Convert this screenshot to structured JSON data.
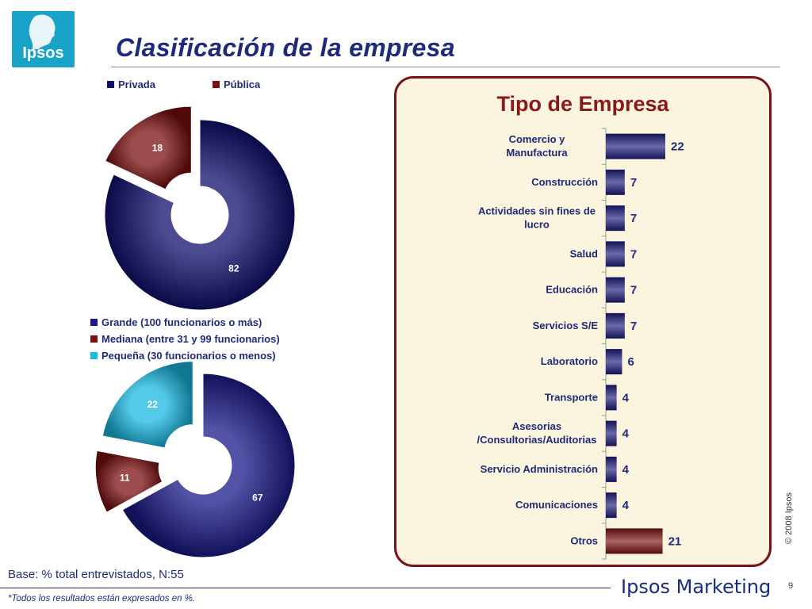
{
  "logo": {
    "text": "Ipsos"
  },
  "title": "Clasificación de la empresa",
  "pie1": {
    "legend": [
      {
        "label": "Privada",
        "color": "#10106e"
      },
      {
        "label": "Pública",
        "color": "#7a1010"
      }
    ]
  },
  "pie2": {
    "legend": [
      {
        "label": "Grande (100 funcionarios o más)",
        "color": "#1a1a8a"
      },
      {
        "label": "Mediana (entre 31 y 99 funcionarios)",
        "color": "#7a1010"
      },
      {
        "label": "Pequeña (30 funcionarios o menos)",
        "color": "#1ab8e0"
      }
    ]
  },
  "panel": {
    "title": "Tipo de Empresa"
  },
  "chart_data": [
    {
      "type": "pie",
      "title": "",
      "slices": [
        {
          "label": "Privada",
          "value": 82,
          "color": "#10106e",
          "exploded": false
        },
        {
          "label": "Pública",
          "value": 18,
          "color": "#7a1010",
          "exploded": true
        }
      ]
    },
    {
      "type": "pie",
      "title": "",
      "slices": [
        {
          "label": "Grande (100 funcionarios o más)",
          "value": 67,
          "color": "#1a1a8a",
          "exploded": false
        },
        {
          "label": "Mediana (entre 31 y 99 funcionarios)",
          "value": 11,
          "color": "#7a1010",
          "exploded": true
        },
        {
          "label": "Pequeña (30 funcionarios o menos)",
          "value": 22,
          "color": "#1ab8e0",
          "exploded": true
        }
      ]
    },
    {
      "type": "bar",
      "orientation": "horizontal",
      "title": "Tipo de Empresa",
      "categories": [
        [
          "Comercio y",
          "Manufactura"
        ],
        [
          "Construcción"
        ],
        [
          "Actividades sin fines de",
          "lucro"
        ],
        [
          "Salud"
        ],
        [
          "Educación"
        ],
        [
          "Servicios S/E"
        ],
        [
          "Laboratorio"
        ],
        [
          "Transporte"
        ],
        [
          "Asesorias",
          "/Consultorias/Auditorias"
        ],
        [
          "Servicio Administración"
        ],
        [
          "Comunicaciones"
        ],
        [
          "Otros"
        ]
      ],
      "values": [
        22,
        7,
        7,
        7,
        7,
        7,
        6,
        4,
        4,
        4,
        4,
        21
      ],
      "colors": [
        "#1a1a7a",
        "#1a1a7a",
        "#1a1a7a",
        "#1a1a7a",
        "#1a1a7a",
        "#1a1a7a",
        "#1a1a7a",
        "#1a1a7a",
        "#1a1a7a",
        "#1a1a7a",
        "#1a1a7a",
        "#7a1010"
      ],
      "xlim": [
        0,
        25
      ]
    }
  ],
  "footer": {
    "copyright": "© 2008 Ipsos",
    "base": "Base: % total entrevistados, N:55",
    "note": "*Todos los resultados están expresados en %.",
    "brand": "Ipsos Marketing",
    "page": "9"
  }
}
